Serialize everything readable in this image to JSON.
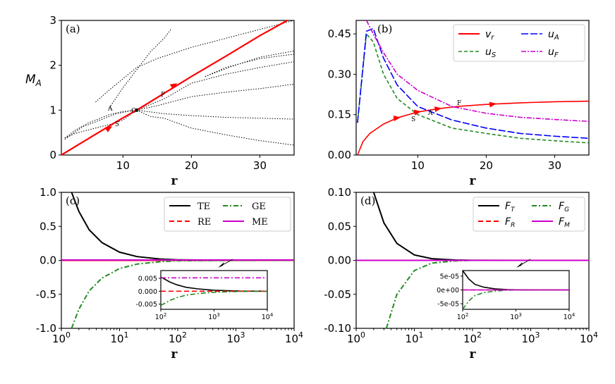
{
  "chart_data": [
    {
      "panel": "(a)",
      "type": "line",
      "xlabel": "r",
      "ylabel": "M_A",
      "xlim": [
        1,
        35
      ],
      "ylim": [
        0,
        3
      ],
      "xticks": [
        "10",
        "20",
        "30"
      ],
      "yticks": [
        "0",
        "1",
        "2",
        "3"
      ],
      "series": [
        {
          "name": "transonic solution",
          "color": "#ff0000",
          "x": [
            1,
            5,
            10,
            12,
            15,
            20,
            25,
            30,
            34
          ],
          "y": [
            0.0,
            0.37,
            0.83,
            1.0,
            1.28,
            1.75,
            2.2,
            2.66,
            3.0
          ]
        }
      ],
      "contours": [
        {
          "x": [
            1.5,
            4,
            7,
            9,
            11,
            12
          ],
          "y": [
            0.35,
            0.62,
            0.8,
            0.92,
            0.98,
            1.0
          ]
        },
        {
          "x": [
            12,
            15,
            20,
            25,
            30,
            35
          ],
          "y": [
            1.0,
            1.1,
            1.3,
            1.4,
            1.48,
            1.58
          ]
        },
        {
          "x": [
            12,
            16,
            20,
            25,
            30,
            35
          ],
          "y": [
            1.0,
            1.25,
            1.6,
            1.8,
            1.95,
            2.08
          ]
        },
        {
          "x": [
            12,
            16,
            20,
            25,
            30,
            35
          ],
          "y": [
            1.0,
            0.92,
            0.88,
            0.84,
            0.82,
            0.8
          ]
        },
        {
          "x": [
            12,
            14,
            16,
            20,
            25,
            30,
            35
          ],
          "y": [
            1.0,
            0.86,
            0.82,
            0.6,
            0.45,
            0.32,
            0.22
          ]
        },
        {
          "x": [
            6,
            8,
            10,
            12,
            15,
            20,
            25,
            30,
            35
          ],
          "y": [
            1.18,
            1.45,
            1.7,
            1.95,
            2.15,
            2.4,
            2.6,
            2.8,
            3.0
          ]
        },
        {
          "x": [
            1.5,
            3,
            5,
            8,
            10,
            12
          ],
          "y": [
            0.38,
            0.55,
            0.72,
            0.9,
            0.97,
            1.0
          ]
        },
        {
          "x": [
            1.5,
            3,
            5,
            8,
            10,
            12
          ],
          "y": [
            0.38,
            0.48,
            0.56,
            0.68,
            0.78,
            1.0
          ]
        },
        {
          "x": [
            8,
            10,
            12,
            14,
            16,
            17
          ],
          "y": [
            1.05,
            1.5,
            1.9,
            2.3,
            2.6,
            2.8
          ]
        },
        {
          "x": [
            22,
            25,
            30,
            35
          ],
          "y": [
            1.75,
            1.95,
            2.15,
            2.25
          ]
        },
        {
          "x": [
            22,
            26,
            30,
            35
          ],
          "y": [
            1.75,
            1.98,
            2.18,
            2.32
          ]
        }
      ],
      "critical_points": [
        "A",
        "S",
        "F"
      ]
    },
    {
      "panel": "(b)",
      "type": "line",
      "xlabel": "r",
      "xlim": [
        1,
        35
      ],
      "ylim": [
        0,
        0.5
      ],
      "xticks": [
        "10",
        "20",
        "30"
      ],
      "yticks": [
        "0.00",
        "0.15",
        "0.30",
        "0.45"
      ],
      "series": [
        {
          "name": "v_r",
          "color": "#ff0000",
          "x": [
            1.2,
            2,
            3,
            5,
            7,
            10,
            13,
            16,
            20,
            25,
            30,
            35
          ],
          "y": [
            0.0,
            0.05,
            0.08,
            0.115,
            0.138,
            0.16,
            0.172,
            0.181,
            0.188,
            0.194,
            0.198,
            0.2
          ]
        },
        {
          "name": "u_S",
          "color": "#228b22",
          "x": [
            1.2,
            2.5,
            3.5,
            5,
            7,
            10,
            15,
            20,
            25,
            30,
            35
          ],
          "y": [
            0.12,
            0.45,
            0.42,
            0.3,
            0.21,
            0.15,
            0.1,
            0.08,
            0.062,
            0.053,
            0.045
          ]
        },
        {
          "name": "u_A",
          "color": "#0000ff",
          "x": [
            1.2,
            2.5,
            3.5,
            5,
            7,
            10,
            15,
            20,
            25,
            30,
            35
          ],
          "y": [
            0.12,
            0.46,
            0.47,
            0.36,
            0.26,
            0.18,
            0.13,
            0.1,
            0.08,
            0.07,
            0.062
          ]
        },
        {
          "name": "u_F",
          "color": "#cc00cc",
          "x": [
            2.5,
            3.5,
            5,
            7,
            10,
            15,
            20,
            25,
            30,
            35
          ],
          "y": [
            0.5,
            0.45,
            0.38,
            0.3,
            0.24,
            0.18,
            0.155,
            0.14,
            0.132,
            0.125
          ]
        }
      ],
      "critical_points": [
        "S",
        "A",
        "F"
      ]
    },
    {
      "panel": "(c)",
      "type": "line",
      "xlabel": "r",
      "xscale": "log",
      "xlim": [
        1,
        10000
      ],
      "ylim": [
        -1,
        1
      ],
      "xticks": [
        "10^0",
        "10^1",
        "10^2",
        "10^3",
        "10^4"
      ],
      "yticks": [
        "-1.0",
        "-0.5",
        "0.0",
        "0.5",
        "1.0"
      ],
      "series": [
        {
          "name": "TE",
          "color": "#000000",
          "x": [
            1.5,
            2,
            3,
            5,
            10,
            20,
            50,
            100,
            1000,
            10000
          ],
          "y": [
            1.0,
            0.72,
            0.45,
            0.26,
            0.12,
            0.055,
            0.02,
            0.008,
            0.001,
            0.0002
          ]
        },
        {
          "name": "RE",
          "color": "#ff0000",
          "x": [
            1,
            10000
          ],
          "y": [
            0,
            0
          ]
        },
        {
          "name": "GE",
          "color": "#228b22",
          "x": [
            1.5,
            2,
            3,
            5,
            10,
            20,
            50,
            100,
            1000,
            10000
          ],
          "y": [
            -1.0,
            -0.72,
            -0.45,
            -0.26,
            -0.12,
            -0.055,
            -0.02,
            -0.006,
            -0.001,
            -0.0002
          ]
        },
        {
          "name": "ME",
          "color": "#cc00cc",
          "x": [
            1,
            10000
          ],
          "y": [
            0.005,
            0.005
          ]
        }
      ],
      "inset": {
        "xlim": [
          100,
          10000
        ],
        "ylim": [
          -0.007,
          0.008
        ],
        "xticks": [
          "10^2",
          "10^3",
          "10^4"
        ],
        "yticks": [
          "0.005",
          "0.000",
          "-0.005"
        ]
      }
    },
    {
      "panel": "(d)",
      "type": "line",
      "xlabel": "r",
      "xscale": "log",
      "xlim": [
        1,
        10000
      ],
      "ylim": [
        -0.1,
        0.1
      ],
      "xticks": [
        "10^0",
        "10^1",
        "10^2",
        "10^3",
        "10^4"
      ],
      "yticks": [
        "-0.10",
        "-0.05",
        "0.00",
        "0.05",
        "0.10"
      ],
      "series": [
        {
          "name": "F_T",
          "color": "#000000",
          "x": [
            2,
            3,
            5,
            10,
            20,
            50,
            100,
            1000,
            10000
          ],
          "y": [
            0.1,
            0.055,
            0.025,
            0.008,
            0.0025,
            0.0005,
            0.00015,
            2e-06,
            0.0
          ]
        },
        {
          "name": "F_R",
          "color": "#ff0000",
          "x": [
            1,
            10000
          ],
          "y": [
            0,
            0
          ]
        },
        {
          "name": "F_G",
          "color": "#228b22",
          "x": [
            3.3,
            5,
            10,
            20,
            50,
            100,
            1000,
            10000
          ],
          "y": [
            -0.1,
            -0.05,
            -0.015,
            -0.004,
            -0.0008,
            -4e-05,
            -2e-06,
            0.0
          ]
        },
        {
          "name": "F_M",
          "color": "#cc00cc",
          "x": [
            1,
            10000
          ],
          "y": [
            0,
            0
          ]
        }
      ],
      "inset": {
        "xlim": [
          100,
          10000
        ],
        "ylim": [
          -7e-05,
          7e-05
        ],
        "xticks": [
          "10^2",
          "10^3",
          "10^4"
        ],
        "yticks": [
          "5e-05",
          "0e+00",
          "-5e-05"
        ]
      }
    }
  ],
  "labels": {
    "panel_a": "(a)",
    "panel_b": "(b)",
    "panel_c": "(c)",
    "panel_d": "(d)",
    "r": "r",
    "ma_main": "M",
    "ma_sub": "A",
    "leg_b": {
      "vr": "v",
      "vr_sub": "r",
      "us": "u",
      "us_sub": "S",
      "ua": "u",
      "ua_sub": "A",
      "uf": "u",
      "uf_sub": "F"
    },
    "leg_c": {
      "te": "TE",
      "re": "RE",
      "ge": "GE",
      "me": "ME"
    },
    "leg_d": {
      "ft": "F",
      "ft_sub": "T",
      "fr": "F",
      "fr_sub": "R",
      "fg": "F",
      "fg_sub": "G",
      "fm": "F",
      "fm_sub": "M"
    },
    "points": {
      "A": "A",
      "S": "S",
      "F": "F",
      "O": "O"
    }
  }
}
